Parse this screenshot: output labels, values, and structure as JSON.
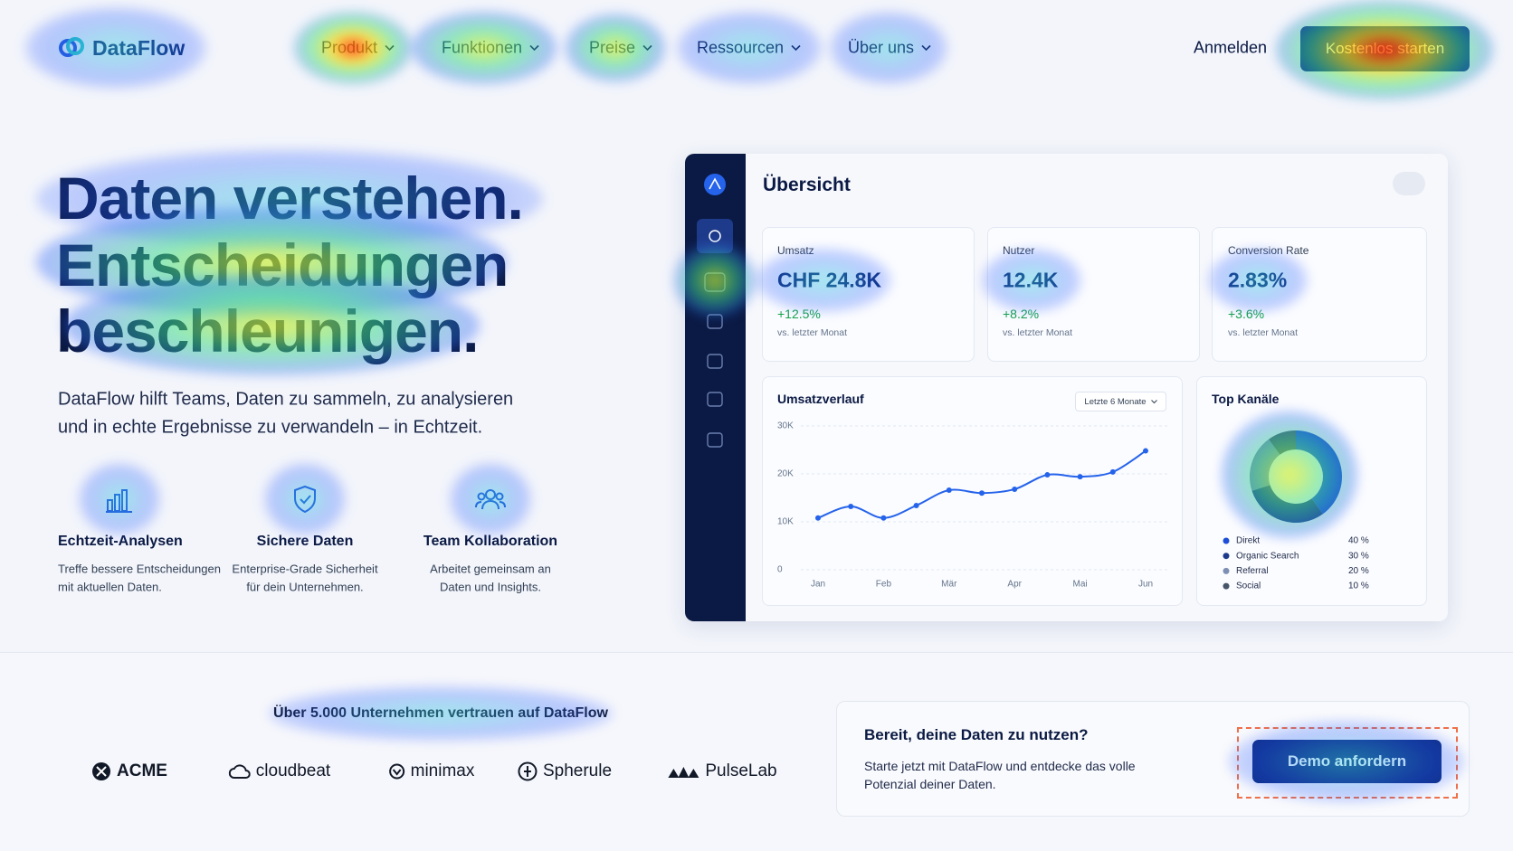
{
  "header": {
    "logo": "DataFlow",
    "nav": [
      "Produkt",
      "Funktionen",
      "Preise",
      "Ressourcen",
      "Über uns"
    ],
    "login": "Anmelden",
    "cta": "Kostenlos starten"
  },
  "hero": {
    "title_lines": [
      "Daten verstehen.",
      "Entscheidungen",
      "beschleunigen."
    ],
    "text_lines": [
      "DataFlow hilft Teams, Daten zu sammeln, zu analysieren",
      "und in echte Ergebnisse zu verwandeln – in Echtzeit."
    ],
    "features": [
      {
        "title": "Echtzeit-Analysen",
        "text_lines": [
          "Treffe bessere Entscheidungen",
          "mit aktuellen Daten."
        ]
      },
      {
        "title": "Sichere Daten",
        "text_lines": [
          "Enterprise-Grade Sicherheit",
          "für dein Unternehmen."
        ]
      },
      {
        "title": "Team Kollaboration",
        "text_lines": [
          "Arbeitet gemeinsam an",
          "Daten und Insights."
        ]
      }
    ]
  },
  "dashboard": {
    "title": "Übersicht",
    "stats": [
      {
        "label": "Umsatz",
        "value": "CHF 24.8K",
        "change": "+12.5%",
        "note": "vs. letzter Monat"
      },
      {
        "label": "Nutzer",
        "value": "12.4K",
        "change": "+8.2%",
        "note": "vs. letzter Monat"
      },
      {
        "label": "Conversion Rate",
        "value": "2.83%",
        "change": "+3.6%",
        "note": "vs. letzter Monat"
      }
    ]
  },
  "chart_data": [
    {
      "type": "line",
      "title": "Umsatzverlauf",
      "range_selector": "Letzte 6 Monate",
      "categories": [
        "Jan",
        null,
        "Feb",
        null,
        "Mär",
        null,
        "Apr",
        null,
        "Mai",
        null,
        "Jun"
      ],
      "series": [
        {
          "name": "Umsatz",
          "color": "#2563eb",
          "values": [
            10800,
            13200,
            10800,
            13400,
            16600,
            16000,
            16800,
            19800,
            19400,
            20400,
            24800
          ]
        }
      ],
      "ylim": [
        0,
        30000
      ],
      "yticks": [
        0,
        {
          "value": 10000,
          "label": "10K"
        },
        {
          "value": 20000,
          "label": "20K"
        },
        {
          "value": 30000,
          "label": "30K"
        }
      ],
      "grid": true
    },
    {
      "type": "pie",
      "title": "Top Kanäle",
      "donut": true,
      "categories": [
        "Direkt",
        "Organic Search",
        "Referral",
        "Social"
      ],
      "values": [
        40,
        30,
        20,
        10
      ],
      "value_labels": [
        "40 %",
        "30 %",
        "20 %",
        "10 %"
      ],
      "colors": [
        "#1d4ed8",
        "#1e3a8a",
        "#7d8fb3",
        "#475569"
      ]
    }
  ],
  "trust": {
    "text": "Über 5.000 Unternehmen vertrauen auf DataFlow",
    "logos": [
      "ACME",
      "cloudbeat",
      "minimax",
      "Spherule",
      "PulseLab"
    ]
  },
  "cta": {
    "title": "Bereit, deine Daten zu nutzen?",
    "text_lines": [
      "Starte jetzt mit DataFlow und entdecke das volle",
      "Potenzial deiner Daten."
    ],
    "button": "Demo anfordern"
  }
}
